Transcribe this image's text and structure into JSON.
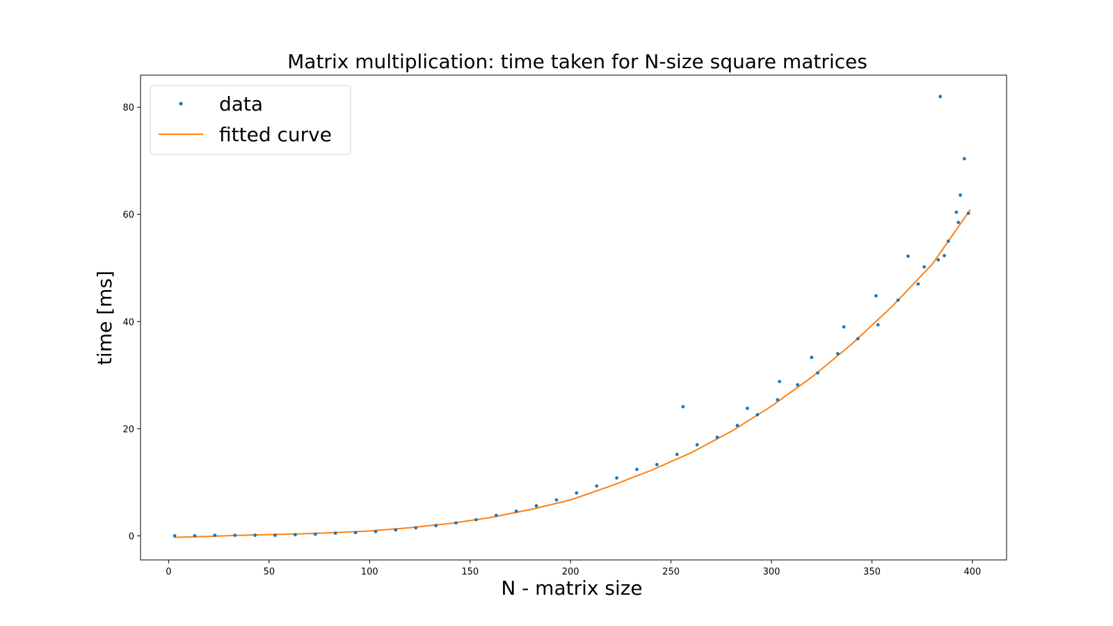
{
  "chart_data": {
    "type": "scatter",
    "title": "Matrix multiplication: time taken for N-size square matrices",
    "xlabel": "N - matrix size",
    "ylabel": "time [ms]",
    "xlim": [
      -14,
      417
    ],
    "ylim": [
      -4.5,
      86
    ],
    "xticks": [
      0,
      50,
      100,
      150,
      200,
      250,
      300,
      350,
      400
    ],
    "yticks": [
      0,
      20,
      40,
      60,
      80
    ],
    "grid": false,
    "legend": {
      "position": "top-left",
      "entries": [
        "data",
        "fitted curve"
      ]
    },
    "series": [
      {
        "name": "data",
        "kind": "points",
        "color": "#1f77b4",
        "x": [
          3,
          13,
          23,
          33,
          43,
          53,
          63,
          73,
          83,
          93,
          103,
          113,
          123,
          133,
          143,
          153,
          163,
          173,
          183,
          193,
          203,
          213,
          223,
          233,
          243,
          253,
          263,
          273,
          283,
          293,
          303,
          313,
          323,
          333,
          343,
          353,
          363,
          373,
          383,
          393,
          398,
          256,
          288,
          304,
          320,
          336,
          352,
          368,
          384,
          396,
          394,
          392,
          388,
          386,
          376
        ],
        "y": [
          0.0,
          0.0,
          0.1,
          0.1,
          0.1,
          0.1,
          0.2,
          0.3,
          0.5,
          0.6,
          0.8,
          1.1,
          1.5,
          1.9,
          2.4,
          3.0,
          3.8,
          4.6,
          5.6,
          6.7,
          8.0,
          9.3,
          10.8,
          12.4,
          13.3,
          15.2,
          17.0,
          18.4,
          20.6,
          22.6,
          25.4,
          28.2,
          30.4,
          34.0,
          36.8,
          39.4,
          44.0,
          47.0,
          51.5,
          58.5,
          60.2,
          24.1,
          23.8,
          28.8,
          33.3,
          39.0,
          44.8,
          52.2,
          82.0,
          70.4,
          63.6,
          60.4,
          55.0,
          52.3,
          50.2
        ]
      },
      {
        "name": "fitted curve",
        "kind": "line",
        "color": "#ff7f0e",
        "x": [
          3,
          20,
          40,
          60,
          80,
          100,
          120,
          140,
          160,
          180,
          200,
          220,
          240,
          260,
          280,
          300,
          320,
          340,
          360,
          380,
          399
        ],
        "y": [
          -0.3,
          -0.1,
          0.15,
          0.3,
          0.55,
          0.9,
          1.5,
          2.3,
          3.4,
          4.9,
          6.7,
          9.3,
          12.2,
          15.5,
          19.5,
          24.2,
          29.6,
          35.8,
          42.8,
          50.7,
          60.9
        ]
      }
    ]
  }
}
